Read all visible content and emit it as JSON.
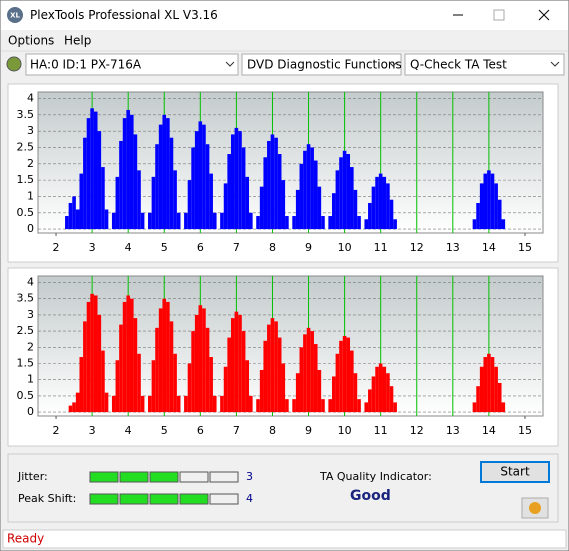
{
  "window": {
    "title": "PlexTools Professional XL V3.16",
    "icon": "XL"
  },
  "menu": [
    "Options",
    "Help"
  ],
  "toolbar": {
    "drive": "HA:0 ID:1  PX-716A",
    "function": "DVD Diagnostic Functions",
    "test": "Q-Check TA Test"
  },
  "chart_data": [
    {
      "type": "bar",
      "color": "#0000ff",
      "xlim": [
        1.5,
        15.5
      ],
      "ylim": [
        -0.12,
        4.2
      ],
      "xticks": [
        2,
        3,
        4,
        5,
        6,
        7,
        8,
        9,
        10,
        11,
        12,
        13,
        14,
        15
      ],
      "yticks": [
        0,
        0.5,
        1,
        1.5,
        2,
        2.5,
        3,
        3.5,
        4
      ],
      "grid": true,
      "x": [
        2.3,
        2.4,
        2.5,
        2.6,
        2.7,
        2.8,
        2.9,
        3,
        3.1,
        3.2,
        3.3,
        3.4,
        3.6,
        3.7,
        3.8,
        3.9,
        4,
        4.1,
        4.2,
        4.3,
        4.4,
        4.6,
        4.7,
        4.8,
        4.9,
        5,
        5.1,
        5.2,
        5.3,
        5.4,
        5.6,
        5.7,
        5.8,
        5.9,
        6,
        6.1,
        6.2,
        6.3,
        6.4,
        6.6,
        6.7,
        6.8,
        6.9,
        7,
        7.1,
        7.2,
        7.3,
        7.4,
        7.6,
        7.7,
        7.8,
        7.9,
        8,
        8.1,
        8.2,
        8.3,
        8.4,
        8.6,
        8.7,
        8.8,
        8.9,
        9,
        9.1,
        9.2,
        9.3,
        9.4,
        9.6,
        9.7,
        9.8,
        9.9,
        10,
        10.1,
        10.2,
        10.3,
        10.4,
        10.6,
        10.7,
        10.8,
        10.9,
        11,
        11.1,
        11.2,
        11.3,
        11.4,
        13.6,
        13.7,
        13.8,
        13.9,
        14,
        14.1,
        14.2,
        14.3,
        14.4
      ],
      "values": [
        0.4,
        0.8,
        1.0,
        0.6,
        1.7,
        2.8,
        3.4,
        3.7,
        3.6,
        3.0,
        1.9,
        0.6,
        0.5,
        1.6,
        2.7,
        3.4,
        3.65,
        3.5,
        2.9,
        1.8,
        0.5,
        0.5,
        1.6,
        2.6,
        3.2,
        3.5,
        3.4,
        2.8,
        1.8,
        0.5,
        0.5,
        1.5,
        2.5,
        3.0,
        3.3,
        3.2,
        2.6,
        1.7,
        0.5,
        0.5,
        1.4,
        2.3,
        2.9,
        3.1,
        3.0,
        2.5,
        1.6,
        0.5,
        0.4,
        1.3,
        2.2,
        2.7,
        2.9,
        2.8,
        2.3,
        1.5,
        0.4,
        0.4,
        1.2,
        2.0,
        2.4,
        2.6,
        2.5,
        2.1,
        1.3,
        0.4,
        0.4,
        1.1,
        1.8,
        2.2,
        2.4,
        2.3,
        1.9,
        1.2,
        0.4,
        0.3,
        0.8,
        1.3,
        1.6,
        1.7,
        1.6,
        1.4,
        0.9,
        0.3,
        0.3,
        0.8,
        1.4,
        1.7,
        1.8,
        1.7,
        1.4,
        0.9,
        0.3
      ]
    },
    {
      "type": "bar",
      "color": "#ff0000",
      "xlim": [
        1.5,
        15.5
      ],
      "ylim": [
        -0.12,
        4.2
      ],
      "xticks": [
        2,
        3,
        4,
        5,
        6,
        7,
        8,
        9,
        10,
        11,
        12,
        13,
        14,
        15
      ],
      "yticks": [
        0,
        0.5,
        1,
        1.5,
        2,
        2.5,
        3,
        3.5,
        4
      ],
      "grid": true,
      "x": [
        2.4,
        2.5,
        2.6,
        2.7,
        2.8,
        2.9,
        3,
        3.1,
        3.2,
        3.3,
        3.4,
        3.6,
        3.7,
        3.8,
        3.9,
        4,
        4.1,
        4.2,
        4.3,
        4.4,
        4.6,
        4.7,
        4.8,
        4.9,
        5,
        5.1,
        5.2,
        5.3,
        5.4,
        5.6,
        5.7,
        5.8,
        5.9,
        6,
        6.1,
        6.2,
        6.3,
        6.4,
        6.6,
        6.7,
        6.8,
        6.9,
        7,
        7.1,
        7.2,
        7.3,
        7.4,
        7.6,
        7.7,
        7.8,
        7.9,
        8,
        8.1,
        8.2,
        8.3,
        8.4,
        8.6,
        8.7,
        8.8,
        8.9,
        9,
        9.1,
        9.2,
        9.3,
        9.4,
        9.6,
        9.7,
        9.8,
        9.9,
        10,
        10.1,
        10.2,
        10.3,
        10.4,
        10.6,
        10.7,
        10.8,
        10.9,
        11,
        11.1,
        11.2,
        11.3,
        11.4,
        13.6,
        13.7,
        13.8,
        13.9,
        14,
        14.1,
        14.2,
        14.3,
        14.4
      ],
      "values": [
        0.2,
        0.3,
        0.6,
        1.7,
        2.8,
        3.4,
        3.65,
        3.6,
        3.0,
        1.9,
        0.6,
        0.5,
        1.6,
        2.7,
        3.4,
        3.6,
        3.5,
        2.9,
        1.8,
        0.5,
        0.5,
        1.6,
        2.6,
        3.2,
        3.5,
        3.4,
        2.8,
        1.8,
        0.5,
        0.5,
        1.5,
        2.5,
        3.0,
        3.3,
        3.2,
        2.6,
        1.7,
        0.5,
        0.5,
        1.4,
        2.3,
        2.9,
        3.1,
        3.0,
        2.5,
        1.6,
        0.5,
        0.4,
        1.3,
        2.2,
        2.7,
        2.9,
        2.8,
        2.3,
        1.5,
        0.4,
        0.4,
        1.2,
        2.0,
        2.4,
        2.6,
        2.5,
        2.1,
        1.3,
        0.4,
        0.4,
        1.1,
        1.8,
        2.2,
        2.35,
        2.3,
        1.9,
        1.2,
        0.4,
        0.3,
        0.7,
        1.1,
        1.4,
        1.5,
        1.4,
        1.2,
        0.8,
        0.3,
        0.3,
        0.8,
        1.4,
        1.7,
        1.8,
        1.7,
        1.4,
        0.9,
        0.3
      ]
    }
  ],
  "jitter": {
    "label": "Jitter:",
    "value": 3
  },
  "peak_shift": {
    "label": "Peak Shift:",
    "value": 4
  },
  "quality": {
    "label": "TA Quality Indicator:",
    "value": "Good"
  },
  "start_button": "Start",
  "status": "Ready"
}
